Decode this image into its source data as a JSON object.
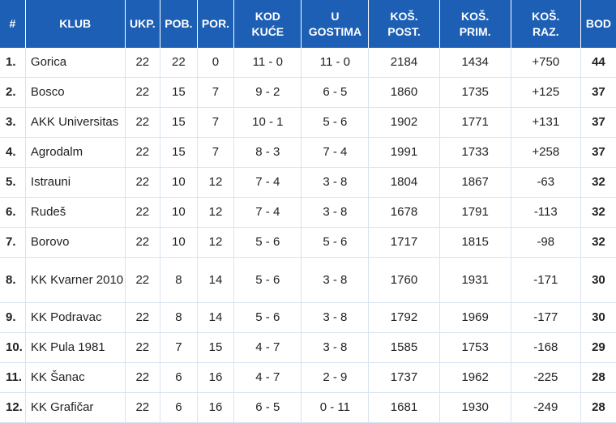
{
  "table": {
    "headers": [
      {
        "key": "rank",
        "line1": "#",
        "line2": ""
      },
      {
        "key": "club",
        "line1": "KLUB",
        "line2": ""
      },
      {
        "key": "played",
        "line1": "UKP.",
        "line2": ""
      },
      {
        "key": "wins",
        "line1": "POB.",
        "line2": ""
      },
      {
        "key": "losses",
        "line1": "POR.",
        "line2": ""
      },
      {
        "key": "home",
        "line1": "KOD",
        "line2": "KUĆE"
      },
      {
        "key": "away",
        "line1": "U",
        "line2": "GOSTIMA"
      },
      {
        "key": "scored",
        "line1": "KOŠ.",
        "line2": "POST."
      },
      {
        "key": "conceded",
        "line1": "KOŠ.",
        "line2": "PRIM."
      },
      {
        "key": "diff",
        "line1": "KOŠ.",
        "line2": "RAZ."
      },
      {
        "key": "points",
        "line1": "BOD",
        "line2": ""
      }
    ],
    "rows": [
      {
        "rank": "1.",
        "club": "Gorica",
        "played": "22",
        "wins": "22",
        "losses": "0",
        "home": "11 - 0",
        "away": "11 - 0",
        "scored": "2184",
        "conceded": "1434",
        "diff": "+750",
        "points": "44"
      },
      {
        "rank": "2.",
        "club": "Bosco",
        "played": "22",
        "wins": "15",
        "losses": "7",
        "home": "9 - 2",
        "away": "6 - 5",
        "scored": "1860",
        "conceded": "1735",
        "diff": "+125",
        "points": "37"
      },
      {
        "rank": "3.",
        "club": "AKK Universitas",
        "played": "22",
        "wins": "15",
        "losses": "7",
        "home": "10 - 1",
        "away": "5 - 6",
        "scored": "1902",
        "conceded": "1771",
        "diff": "+131",
        "points": "37"
      },
      {
        "rank": "4.",
        "club": "Agrodalm",
        "played": "22",
        "wins": "15",
        "losses": "7",
        "home": "8 - 3",
        "away": "7 - 4",
        "scored": "1991",
        "conceded": "1733",
        "diff": "+258",
        "points": "37"
      },
      {
        "rank": "5.",
        "club": "Istrauni",
        "played": "22",
        "wins": "10",
        "losses": "12",
        "home": "7 - 4",
        "away": "3 - 8",
        "scored": "1804",
        "conceded": "1867",
        "diff": "-63",
        "points": "32"
      },
      {
        "rank": "6.",
        "club": "Rudeš",
        "played": "22",
        "wins": "10",
        "losses": "12",
        "home": "7 - 4",
        "away": "3 - 8",
        "scored": "1678",
        "conceded": "1791",
        "diff": "-113",
        "points": "32"
      },
      {
        "rank": "7.",
        "club": "Borovo",
        "played": "22",
        "wins": "10",
        "losses": "12",
        "home": "5 - 6",
        "away": "5 - 6",
        "scored": "1717",
        "conceded": "1815",
        "diff": "-98",
        "points": "32"
      },
      {
        "rank": "8.",
        "club": "KK Kvarner 2010",
        "played": "22",
        "wins": "8",
        "losses": "14",
        "home": "5 - 6",
        "away": "3 - 8",
        "scored": "1760",
        "conceded": "1931",
        "diff": "-171",
        "points": "30"
      },
      {
        "rank": "9.",
        "club": "KK Podravac",
        "played": "22",
        "wins": "8",
        "losses": "14",
        "home": "5 - 6",
        "away": "3 - 8",
        "scored": "1792",
        "conceded": "1969",
        "diff": "-177",
        "points": "30"
      },
      {
        "rank": "10.",
        "club": "KK Pula 1981",
        "played": "22",
        "wins": "7",
        "losses": "15",
        "home": "4 - 7",
        "away": "3 - 8",
        "scored": "1585",
        "conceded": "1753",
        "diff": "-168",
        "points": "29"
      },
      {
        "rank": "11.",
        "club": "KK Šanac",
        "played": "22",
        "wins": "6",
        "losses": "16",
        "home": "4 - 7",
        "away": "2 - 9",
        "scored": "1737",
        "conceded": "1962",
        "diff": "-225",
        "points": "28"
      },
      {
        "rank": "12.",
        "club": "KK Grafičar",
        "played": "22",
        "wins": "6",
        "losses": "16",
        "home": "6 - 5",
        "away": "0 - 11",
        "scored": "1681",
        "conceded": "1930",
        "diff": "-249",
        "points": "28"
      }
    ]
  }
}
